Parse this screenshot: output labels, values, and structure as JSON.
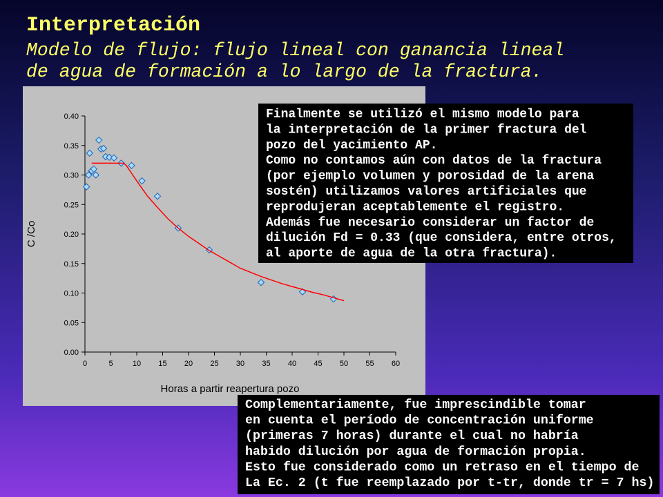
{
  "title": "Interpretación",
  "subtitle": [
    "Modelo de flujo: flujo lineal con ganancia lineal",
    "de agua de formación a lo largo de la fractura."
  ],
  "chart_data": {
    "type": "scatter",
    "xlabel": "Horas a partir reapertura pozo",
    "ylabel": "C /Co",
    "xlim": [
      0,
      60
    ],
    "xticks": [
      0,
      5,
      10,
      15,
      20,
      25,
      30,
      35,
      40,
      45,
      50,
      55,
      60
    ],
    "ylim": [
      0,
      0.4
    ],
    "yticks": [
      {
        "value": 0,
        "label": "0.00"
      },
      {
        "value": 0.05,
        "label": "0.05"
      },
      {
        "value": 0.1,
        "label": "0.10"
      },
      {
        "value": 0.15,
        "label": "0.15"
      },
      {
        "value": 0.2,
        "label": "0.20"
      },
      {
        "value": 0.25,
        "label": "0.25"
      },
      {
        "value": 0.3,
        "label": "0.30"
      },
      {
        "value": 0.35,
        "label": "0.35"
      },
      {
        "value": 0.4,
        "label": "0.40"
      }
    ],
    "background": "#c0c0c0",
    "series": [
      {
        "style": "markers",
        "color": "#a8dcff",
        "edge": "#1f5fb0",
        "x": [
          0.3,
          0.7,
          0.9,
          1.3,
          1.7,
          2.1,
          2.7,
          3.1,
          3.6,
          4,
          4.7,
          5.6,
          7,
          9,
          11,
          14,
          18,
          24,
          34,
          42,
          48
        ],
        "values": [
          0.28,
          0.3,
          0.337,
          0.307,
          0.31,
          0.3,
          0.359,
          0.344,
          0.345,
          0.331,
          0.33,
          0.329,
          0.32,
          0.316,
          0.29,
          0.264,
          0.21,
          0.173,
          0.118,
          0.102,
          0.09
        ]
      },
      {
        "style": "line",
        "color": "#ff0000",
        "x": [
          1.3,
          7.5,
          8,
          10,
          12,
          14,
          16,
          18,
          20,
          22,
          24,
          26,
          28,
          30,
          32,
          34,
          36,
          38,
          40,
          42,
          44,
          46,
          48,
          50
        ],
        "values": [
          0.32,
          0.32,
          0.316,
          0.29,
          0.265,
          0.245,
          0.226,
          0.21,
          0.196,
          0.184,
          0.172,
          0.162,
          0.152,
          0.142,
          0.135,
          0.128,
          0.122,
          0.116,
          0.111,
          0.106,
          0.101,
          0.097,
          0.092,
          0.087
        ]
      }
    ]
  },
  "notes": [
    {
      "lines": [
        "Finalmente se utilizó el mismo modelo para",
        "la interpretación de la primer fractura del",
        "pozo del yacimiento AP.",
        "Como no contamos aún con datos de la fractura",
        "(por ejemplo volumen y porosidad de la arena",
        "sostén) utilizamos valores artificiales que",
        "reprodujeran aceptablemente el registro.",
        "Además fue necesario considerar un factor de",
        "dilución Fd = 0.33 (que considera, entre otros,",
        "al aporte de agua de la otra fractura)."
      ]
    },
    {
      "lines": [
        "Complementariamente, fue imprescindible tomar",
        "en cuenta el período de concentración uniforme",
        "(primeras 7 horas) durante el cual no habría",
        "habido dilución por agua de formación propia.",
        "Esto fue considerado como un retraso en el tiempo de",
        "La Ec. 2 (t fue reemplazado por t-tr, donde tr = 7 hs)"
      ]
    }
  ]
}
